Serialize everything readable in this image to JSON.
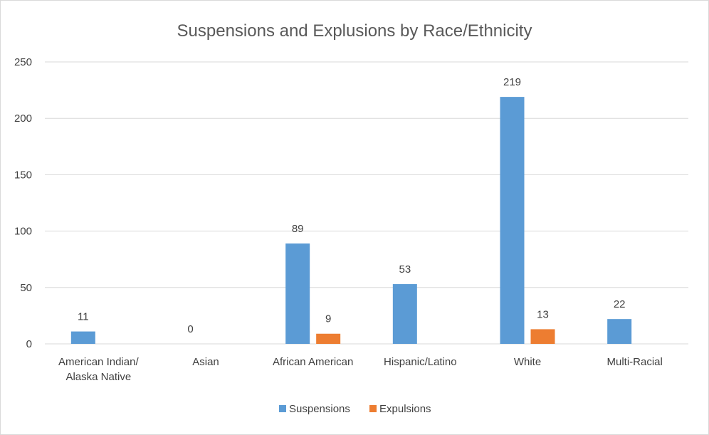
{
  "chart_data": {
    "type": "bar",
    "title": "Suspensions and Explusions by Race/Ethnicity",
    "categories": [
      [
        "American Indian/",
        "Alaska Native"
      ],
      [
        "Asian"
      ],
      [
        "African American"
      ],
      [
        "Hispanic/Latino"
      ],
      [
        "White"
      ],
      [
        "Multi-Racial"
      ]
    ],
    "series": [
      {
        "name": "Suspensions",
        "color": "#5b9bd5",
        "values": [
          11,
          0,
          89,
          53,
          219,
          22
        ],
        "labels": [
          "11",
          "0",
          "89",
          "53",
          "219",
          "22"
        ]
      },
      {
        "name": "Expulsions",
        "color": "#ed7d31",
        "values": [
          0,
          0,
          9,
          0,
          13,
          0
        ],
        "labels": [
          "",
          "",
          "9",
          "",
          "13",
          ""
        ]
      }
    ],
    "ylim": [
      0,
      250
    ],
    "yticks": [
      0,
      50,
      100,
      150,
      200,
      250
    ],
    "grid": true,
    "legend": "bottom"
  }
}
